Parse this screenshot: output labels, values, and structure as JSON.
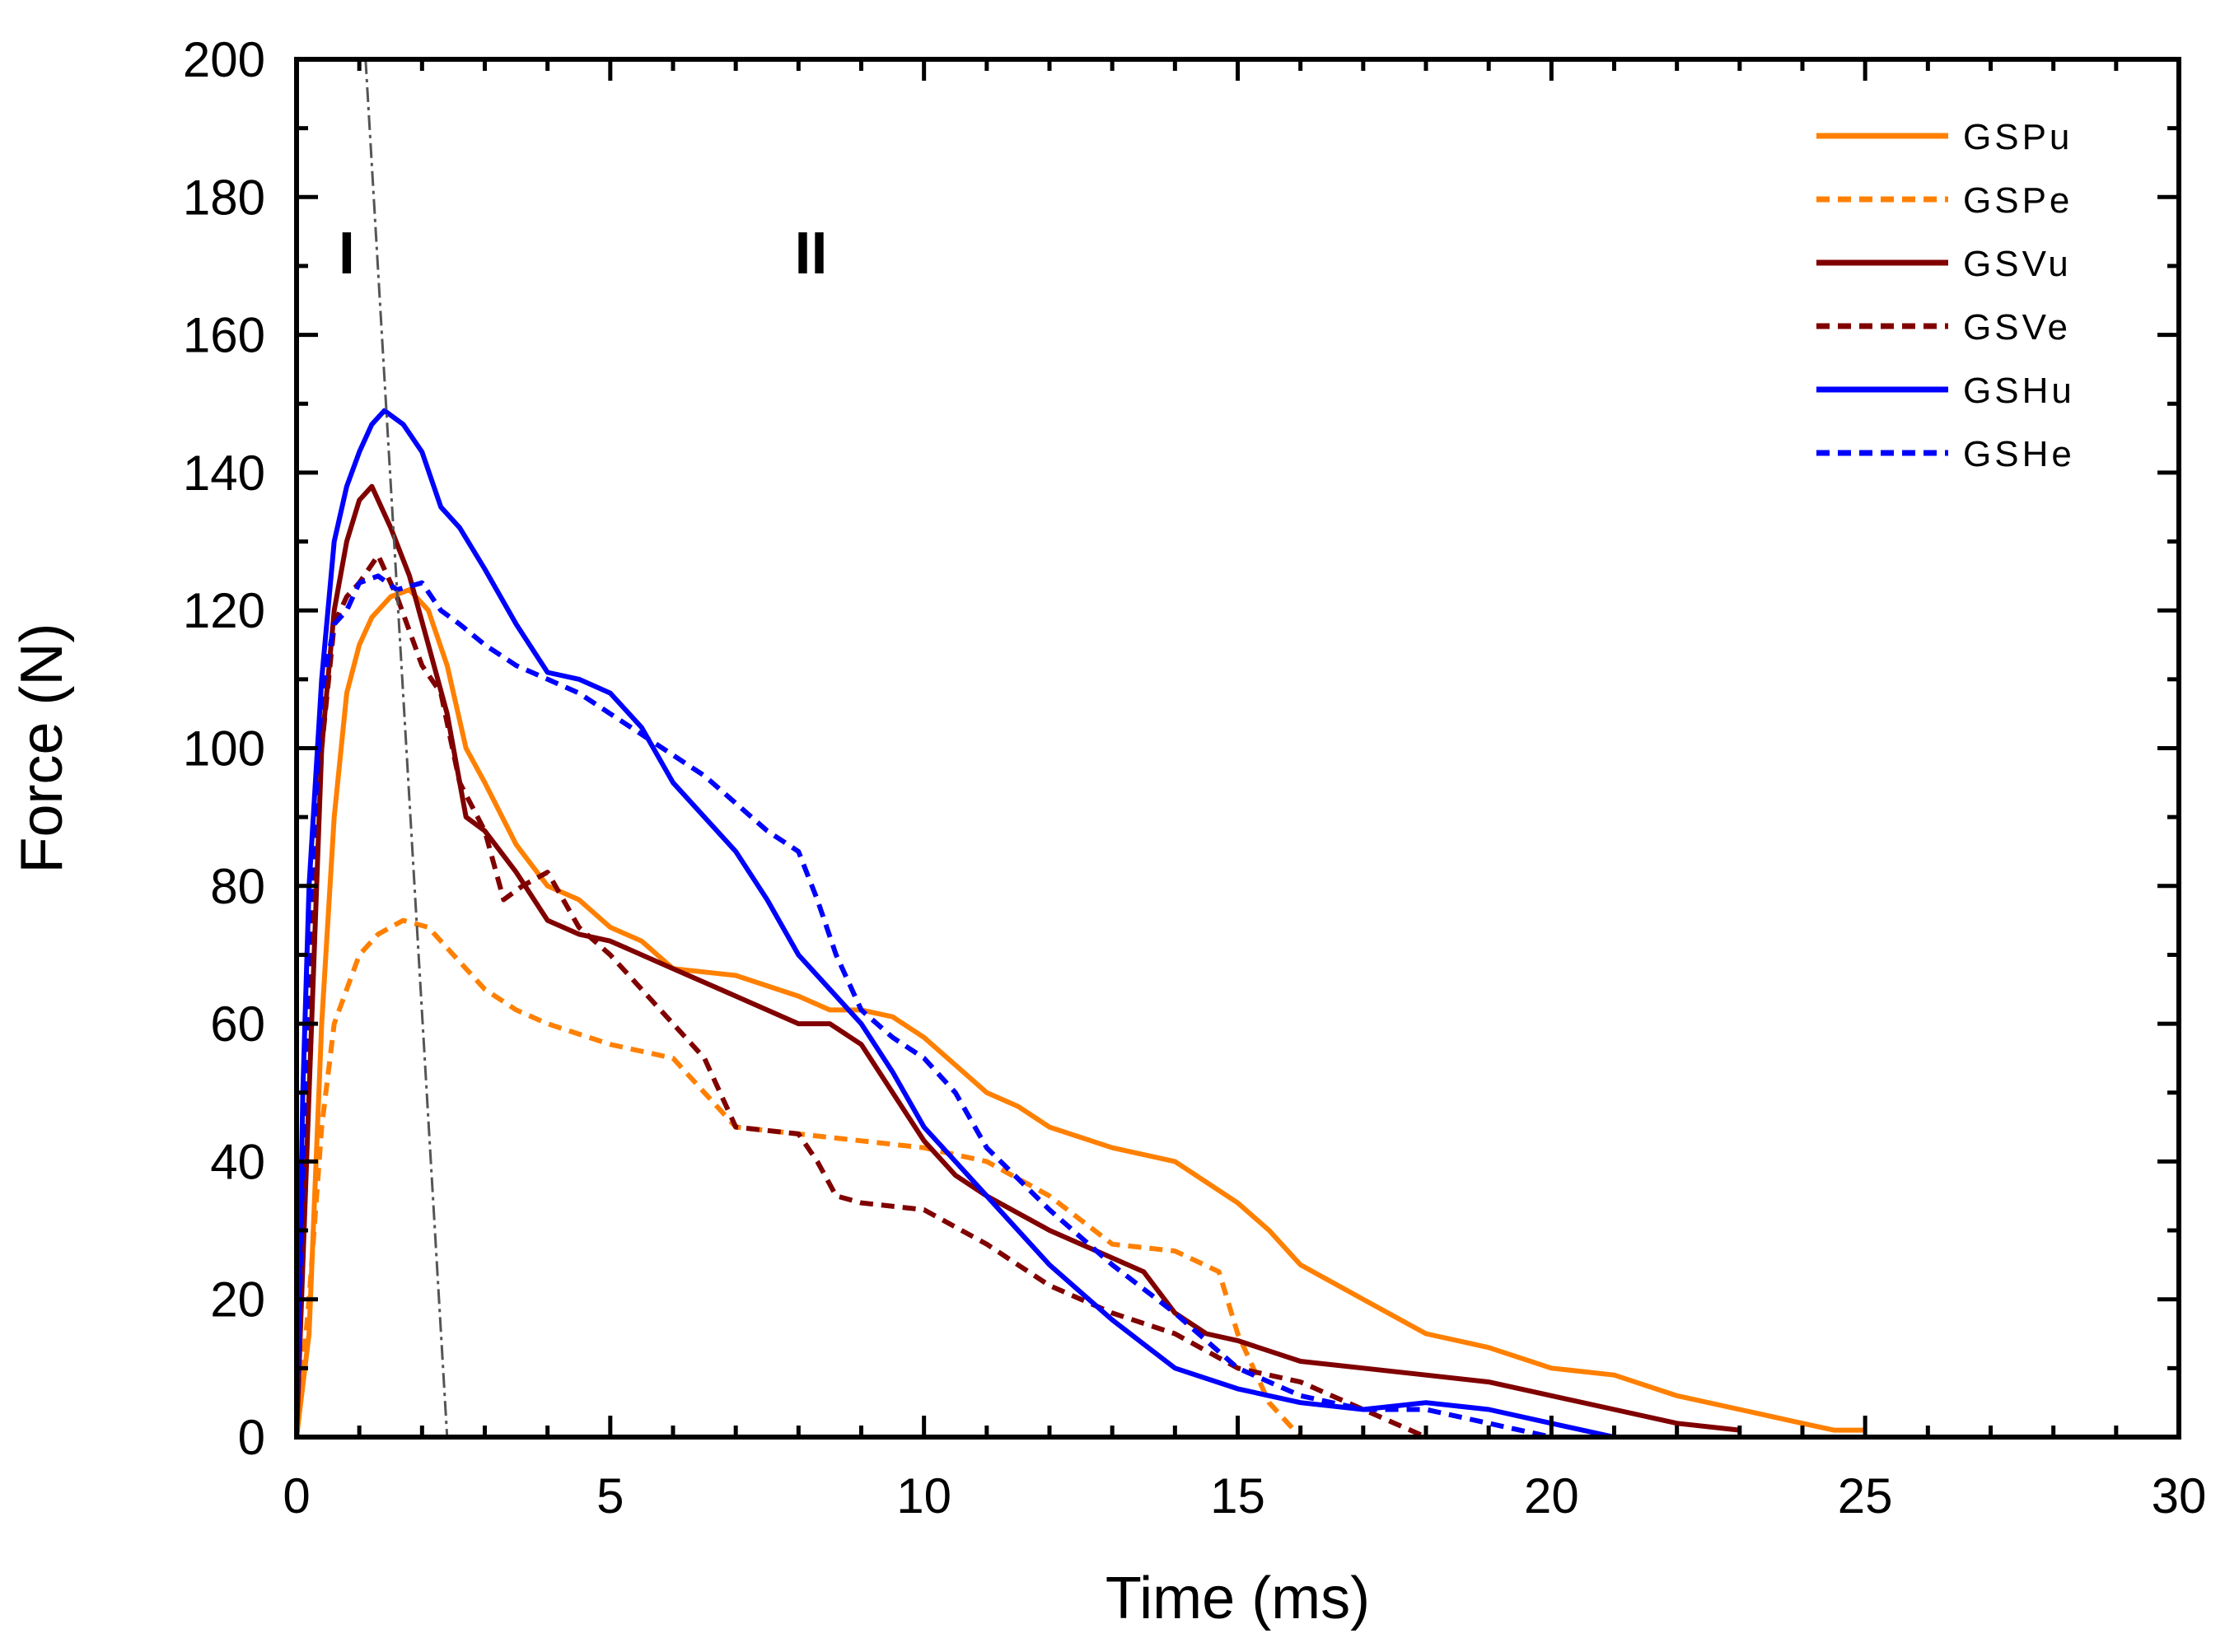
{
  "chart_data": {
    "type": "line",
    "title": "",
    "xlabel": "Time (ms)",
    "ylabel": "Force (N)",
    "xlim": [
      0,
      30
    ],
    "ylim": [
      0,
      200
    ],
    "xticks": [
      0,
      5,
      10,
      15,
      20,
      25,
      30
    ],
    "yticks": [
      0,
      20,
      40,
      60,
      80,
      100,
      120,
      140,
      160,
      180,
      200
    ],
    "xtick_labels": [
      "0",
      "5",
      "10",
      "15",
      "20",
      "25",
      "30"
    ],
    "ytick_labels": [
      "0",
      "20",
      "40",
      "60",
      "80",
      "100",
      "120",
      "140",
      "160",
      "180",
      "200"
    ],
    "grid": false,
    "legend_position": "top-right",
    "annotations": [
      {
        "text": "I",
        "x": 0.8,
        "y": 172
      },
      {
        "text": "II",
        "x": 8.2,
        "y": 172
      }
    ],
    "divider_line": {
      "x": [
        1.1,
        2.4
      ],
      "y": [
        200,
        0
      ],
      "color": "#555555",
      "style": "dash-dot"
    },
    "series": [
      {
        "name": "GSPu",
        "color": "#ff8000",
        "style": "solid",
        "x": [
          0,
          0.2,
          0.4,
          0.6,
          0.8,
          1.0,
          1.2,
          1.5,
          1.8,
          2.1,
          2.4,
          2.7,
          3.0,
          3.5,
          4.0,
          4.5,
          5.0,
          5.5,
          6.0,
          7.0,
          8.0,
          8.5,
          9.0,
          9.5,
          10.0,
          10.5,
          11.0,
          11.5,
          12.0,
          13.0,
          14.0,
          15.0,
          15.5,
          16.0,
          17.0,
          18.0,
          19.0,
          20.0,
          21.0,
          22.0,
          23.0,
          24.0,
          24.5,
          25.0
        ],
        "values": [
          0,
          15,
          60,
          90,
          108,
          115,
          119,
          122,
          123,
          120,
          112,
          100,
          95,
          86,
          80,
          78,
          74,
          72,
          68,
          67,
          64,
          62,
          62,
          61,
          58,
          54,
          50,
          48,
          45,
          42,
          40,
          34,
          30,
          25,
          20,
          15,
          13,
          10,
          9,
          6,
          4,
          2,
          1,
          1
        ]
      },
      {
        "name": "GSPe",
        "color": "#ff8000",
        "style": "dashed",
        "x": [
          0,
          0.2,
          0.4,
          0.6,
          0.8,
          1.0,
          1.3,
          1.7,
          2.1,
          2.5,
          3.0,
          3.5,
          4.0,
          5.0,
          6.0,
          6.5,
          7.0,
          8.0,
          9.0,
          10.0,
          11.0,
          12.0,
          13.0,
          14.0,
          14.7,
          15.0,
          15.5,
          16.0
        ],
        "values": [
          0,
          20,
          45,
          60,
          65,
          70,
          73,
          75,
          74,
          70,
          65,
          62,
          60,
          57,
          55,
          50,
          45,
          44,
          43,
          42,
          40,
          35,
          28,
          27,
          24,
          15,
          5,
          0
        ]
      },
      {
        "name": "GSVu",
        "color": "#800000",
        "style": "solid",
        "x": [
          0,
          0.2,
          0.4,
          0.6,
          0.8,
          1.0,
          1.2,
          1.5,
          1.8,
          2.1,
          2.4,
          2.7,
          3.0,
          3.5,
          4.0,
          4.5,
          5.0,
          6.0,
          7.0,
          8.0,
          8.5,
          9.0,
          9.5,
          10.0,
          10.5,
          11.0,
          12.0,
          13.0,
          13.5,
          14.0,
          14.5,
          15.0,
          16.0,
          17.0,
          18.0,
          19.0,
          20.0,
          21.0,
          22.0,
          23.0
        ],
        "values": [
          0,
          50,
          100,
          120,
          130,
          136,
          138,
          132,
          125,
          115,
          105,
          90,
          88,
          82,
          75,
          73,
          72,
          68,
          64,
          60,
          60,
          57,
          50,
          43,
          38,
          35,
          30,
          26,
          24,
          18,
          15,
          14,
          11,
          10,
          9,
          8,
          6,
          4,
          2,
          1
        ]
      },
      {
        "name": "GSVe",
        "color": "#800000",
        "style": "dashed",
        "x": [
          0,
          0.2,
          0.4,
          0.6,
          0.8,
          1.0,
          1.3,
          1.6,
          2.0,
          2.3,
          2.6,
          3.0,
          3.3,
          3.6,
          4.0,
          4.5,
          5.0,
          6.0,
          6.5,
          7.0,
          8.0,
          8.3,
          8.6,
          9.0,
          10.0,
          11.0,
          12.0,
          13.0,
          14.0,
          15.0,
          16.0,
          17.0,
          18.0
        ],
        "values": [
          0,
          60,
          100,
          118,
          122,
          124,
          128,
          122,
          112,
          108,
          95,
          88,
          78,
          80,
          82,
          74,
          70,
          60,
          55,
          45,
          44,
          40,
          35,
          34,
          33,
          28,
          22,
          18,
          15,
          10,
          8,
          4,
          0
        ]
      },
      {
        "name": "GSHu",
        "color": "#0000ff",
        "style": "solid",
        "x": [
          0,
          0.1,
          0.2,
          0.4,
          0.6,
          0.8,
          1.0,
          1.2,
          1.4,
          1.7,
          2.0,
          2.3,
          2.6,
          3.0,
          3.5,
          4.0,
          4.5,
          5.0,
          5.5,
          6.0,
          7.0,
          7.5,
          8.0,
          8.5,
          9.0,
          9.5,
          10.0,
          10.5,
          11.0,
          12.0,
          13.0,
          14.0,
          15.0,
          16.0,
          17.0,
          18.0,
          19.0,
          20.0,
          21.0
        ],
        "values": [
          0,
          50,
          80,
          110,
          130,
          138,
          143,
          147,
          149,
          147,
          143,
          135,
          132,
          126,
          118,
          111,
          110,
          108,
          103,
          95,
          85,
          78,
          70,
          65,
          60,
          53,
          45,
          40,
          35,
          25,
          17,
          10,
          7,
          5,
          4,
          5,
          4,
          2,
          0
        ]
      },
      {
        "name": "GSHe",
        "color": "#0000ff",
        "style": "dashed",
        "x": [
          0,
          0.1,
          0.2,
          0.4,
          0.6,
          0.8,
          1.0,
          1.3,
          1.6,
          2.0,
          2.3,
          2.6,
          3.0,
          3.5,
          4.0,
          4.5,
          5.0,
          5.5,
          6.0,
          6.5,
          7.0,
          7.5,
          8.0,
          8.3,
          8.6,
          9.0,
          9.5,
          10.0,
          10.5,
          11.0,
          12.0,
          13.0,
          14.0,
          15.0,
          16.0,
          17.0,
          18.0,
          19.0,
          20.0
        ],
        "values": [
          0,
          40,
          75,
          108,
          118,
          120,
          124,
          125,
          123,
          124,
          120,
          118,
          115,
          112,
          110,
          108,
          105,
          102,
          99,
          96,
          92,
          88,
          85,
          78,
          70,
          62,
          58,
          55,
          50,
          42,
          33,
          25,
          18,
          10,
          6,
          4,
          4,
          2,
          0
        ]
      }
    ]
  }
}
